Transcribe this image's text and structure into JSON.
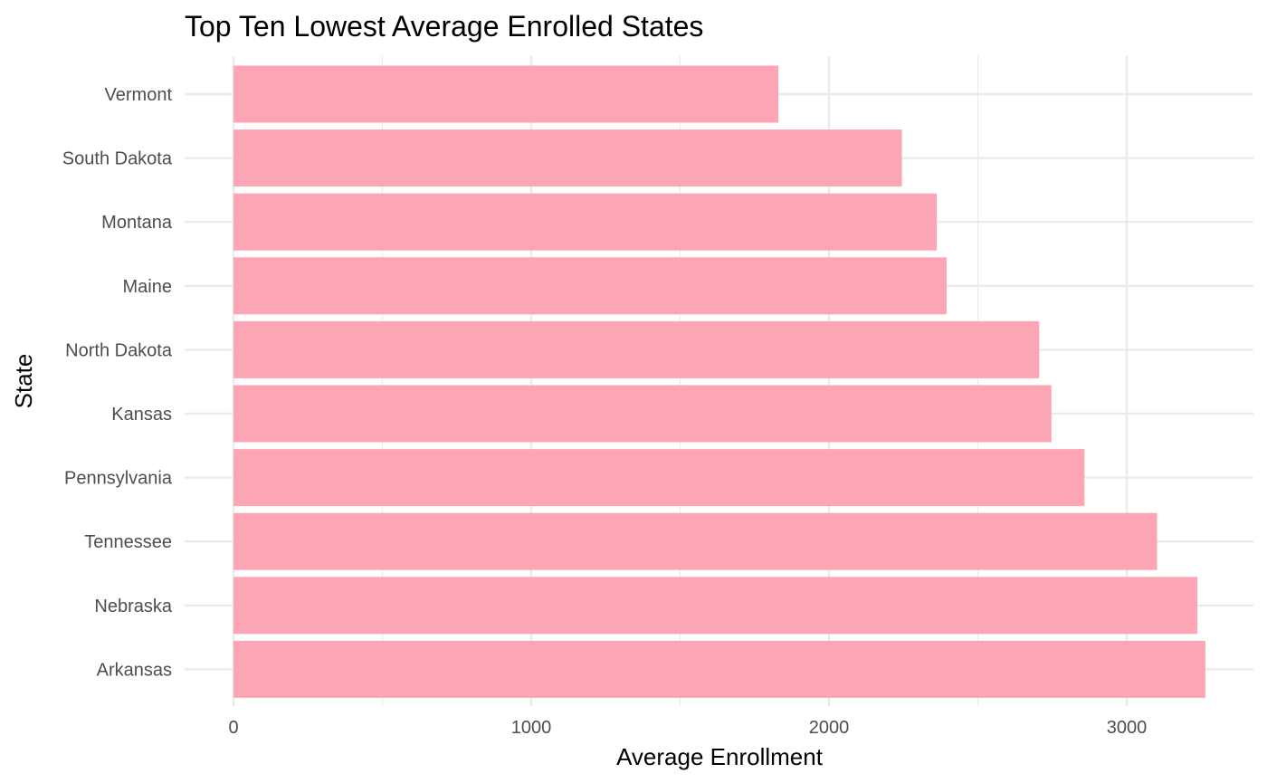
{
  "chart_data": {
    "type": "bar",
    "orientation": "horizontal",
    "title": "Top Ten Lowest Average Enrolled States",
    "xlabel": "Average Enrollment",
    "ylabel": "State",
    "categories": [
      "Vermont",
      "South Dakota",
      "Montana",
      "Maine",
      "North Dakota",
      "Kansas",
      "Pennsylvania",
      "Tennessee",
      "Nebraska",
      "Arkansas"
    ],
    "values": [
      1830,
      2245,
      2362,
      2395,
      2706,
      2747,
      2858,
      3102,
      3237,
      3264
    ],
    "xlim": [
      0,
      3300
    ],
    "xticks": [
      0,
      1000,
      2000,
      3000
    ],
    "grid": true,
    "colors": {
      "bar": "#fca5b4",
      "grid": "#ebebeb",
      "tick_text": "#4d4d4d",
      "title_text": "#000000"
    }
  }
}
